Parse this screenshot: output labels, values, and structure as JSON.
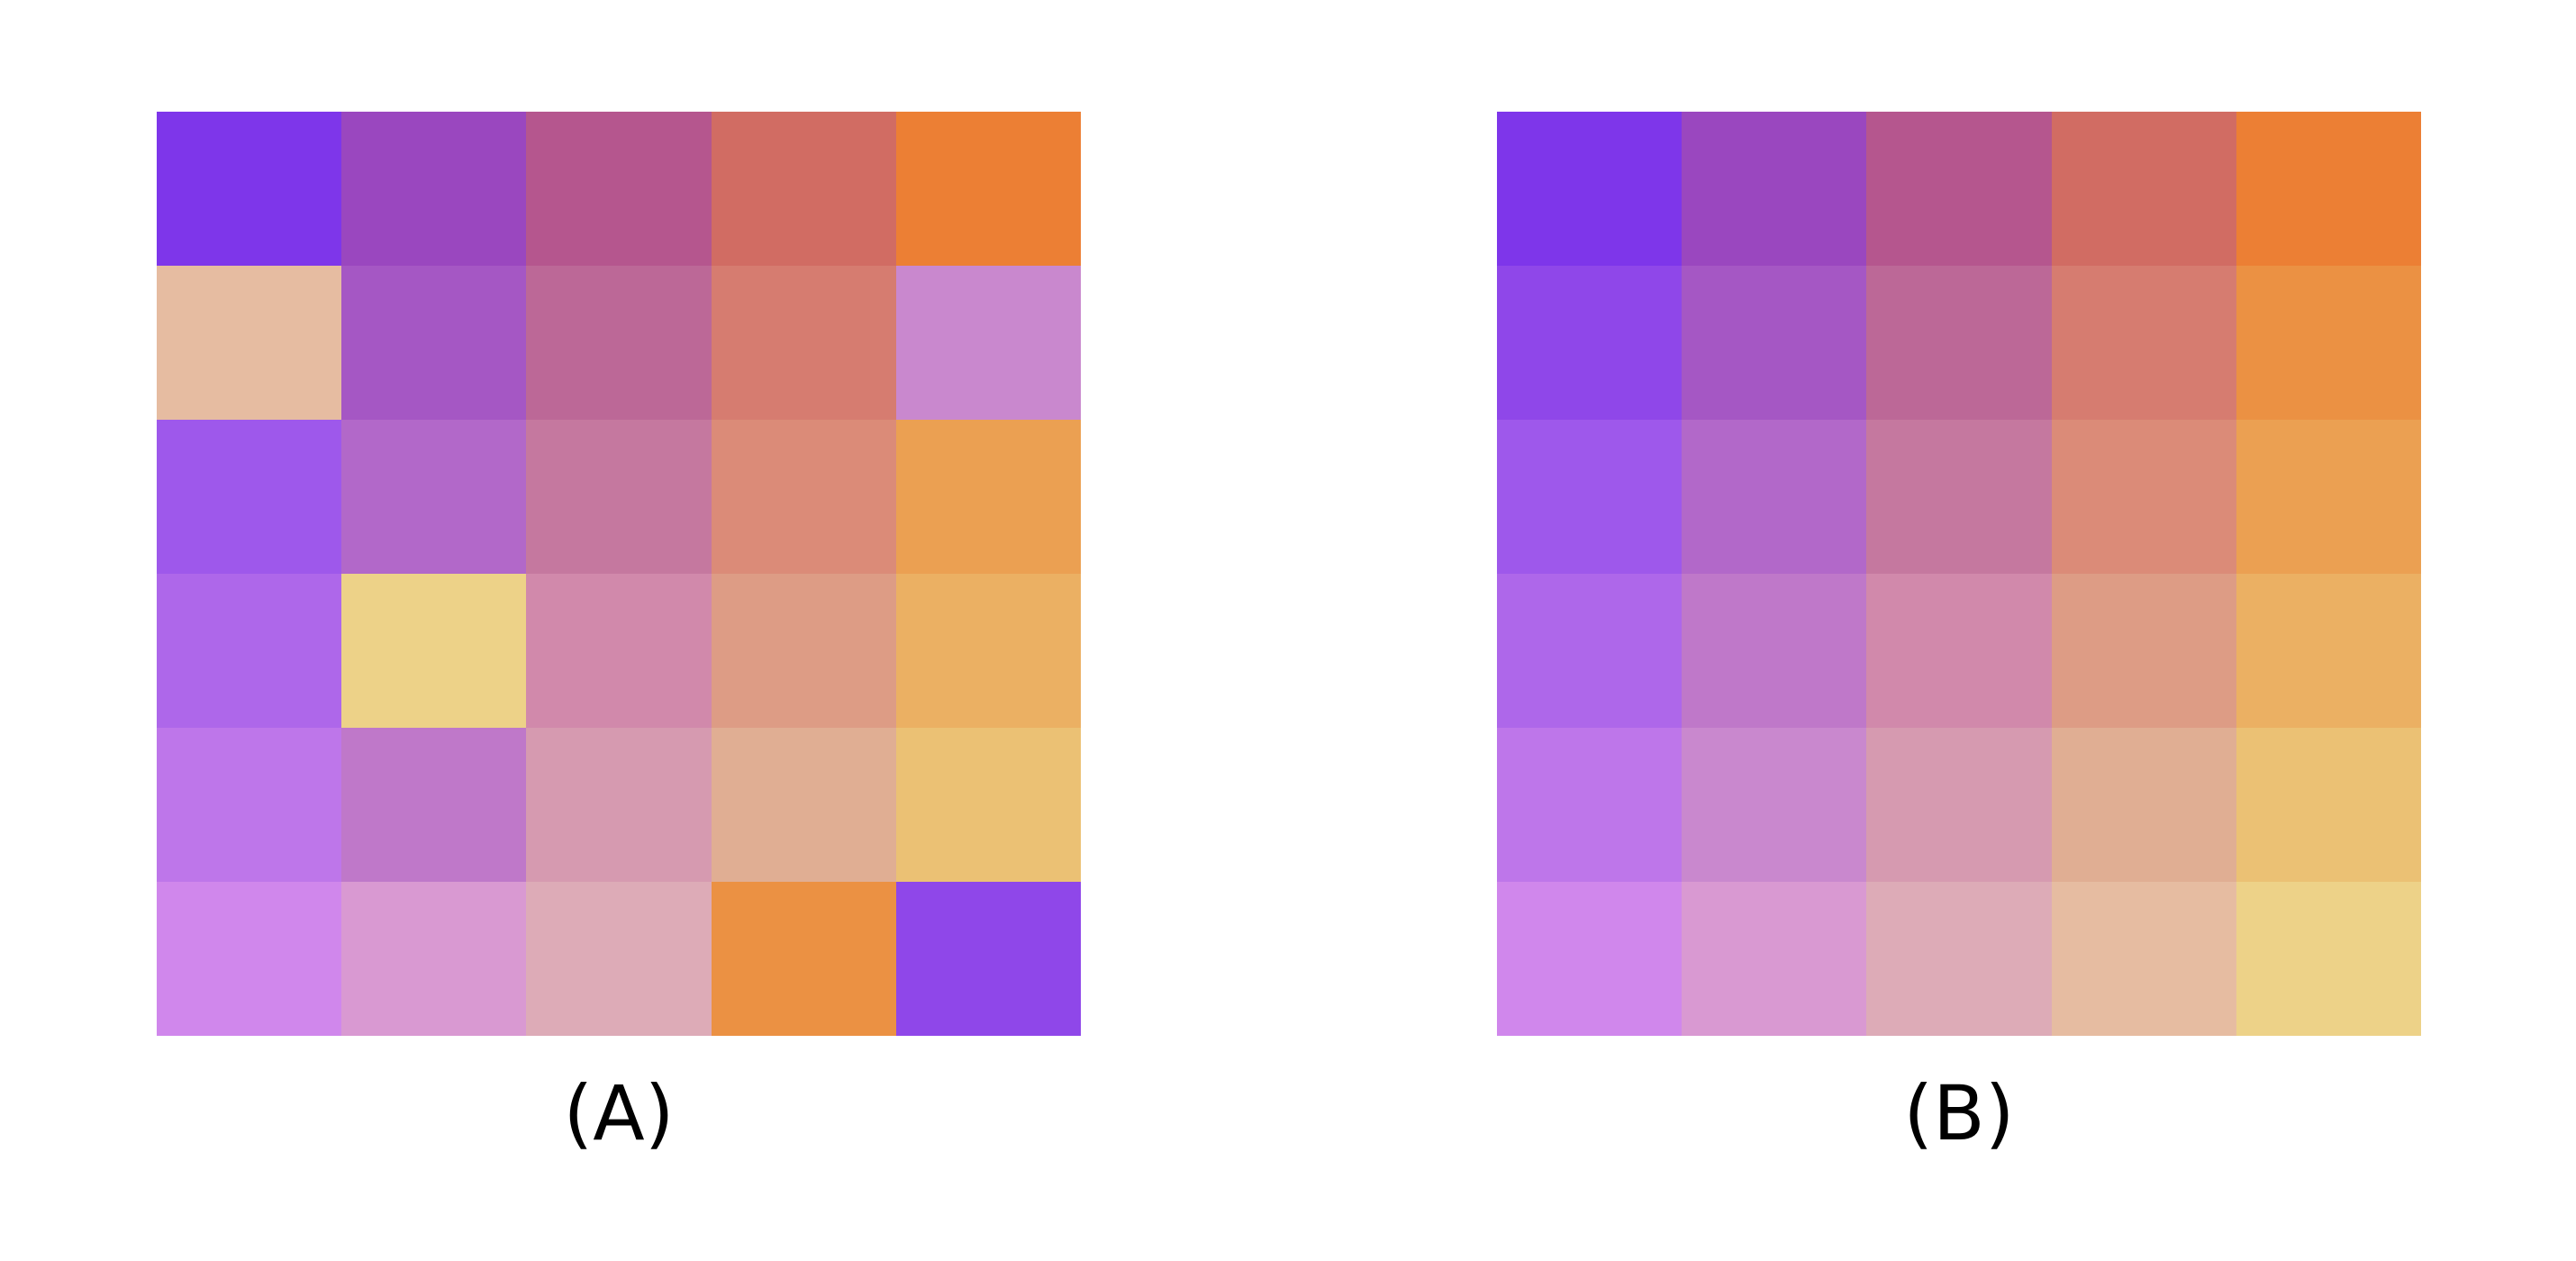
{
  "panels": [
    {
      "label": "(A)",
      "rows": [
        [
          "#7e36ea",
          "#9a47bf",
          "#b5568e",
          "#d16c63",
          "#ec7f34"
        ],
        [
          "#e6bca1",
          "#a557c4",
          "#bc6897",
          "#d67c70",
          "#c988ce"
        ],
        [
          "#9e58eb",
          "#b268c9",
          "#c5789f",
          "#db8b78",
          "#eba052"
        ],
        [
          "#ae67ea",
          "#edd288",
          "#d189ab",
          "#dd9c85",
          "#ebb063"
        ],
        [
          "#be76ea",
          "#bf78c9",
          "#d69ab0",
          "#e0ae93",
          "#ebc174"
        ],
        [
          "#d087ec",
          "#d999d2",
          "#ddabb7",
          "#eb9143",
          "#8f47e9"
        ]
      ]
    },
    {
      "label": "(B)",
      "rows": [
        [
          "#7e36ea",
          "#9a47bf",
          "#b5568e",
          "#d16c63",
          "#ec7f34"
        ],
        [
          "#8f47e9",
          "#a557c4",
          "#bc6897",
          "#d67c70",
          "#eb9143"
        ],
        [
          "#9e58eb",
          "#b268c9",
          "#c5789f",
          "#db8b78",
          "#eba052"
        ],
        [
          "#ae67ea",
          "#bf78c9",
          "#d189ab",
          "#dd9c85",
          "#ebb063"
        ],
        [
          "#be76ea",
          "#c988ce",
          "#d69ab0",
          "#e0ae93",
          "#ebc174"
        ],
        [
          "#d087ec",
          "#d999d2",
          "#ddabb7",
          "#e6bca1",
          "#edd288"
        ]
      ]
    }
  ]
}
